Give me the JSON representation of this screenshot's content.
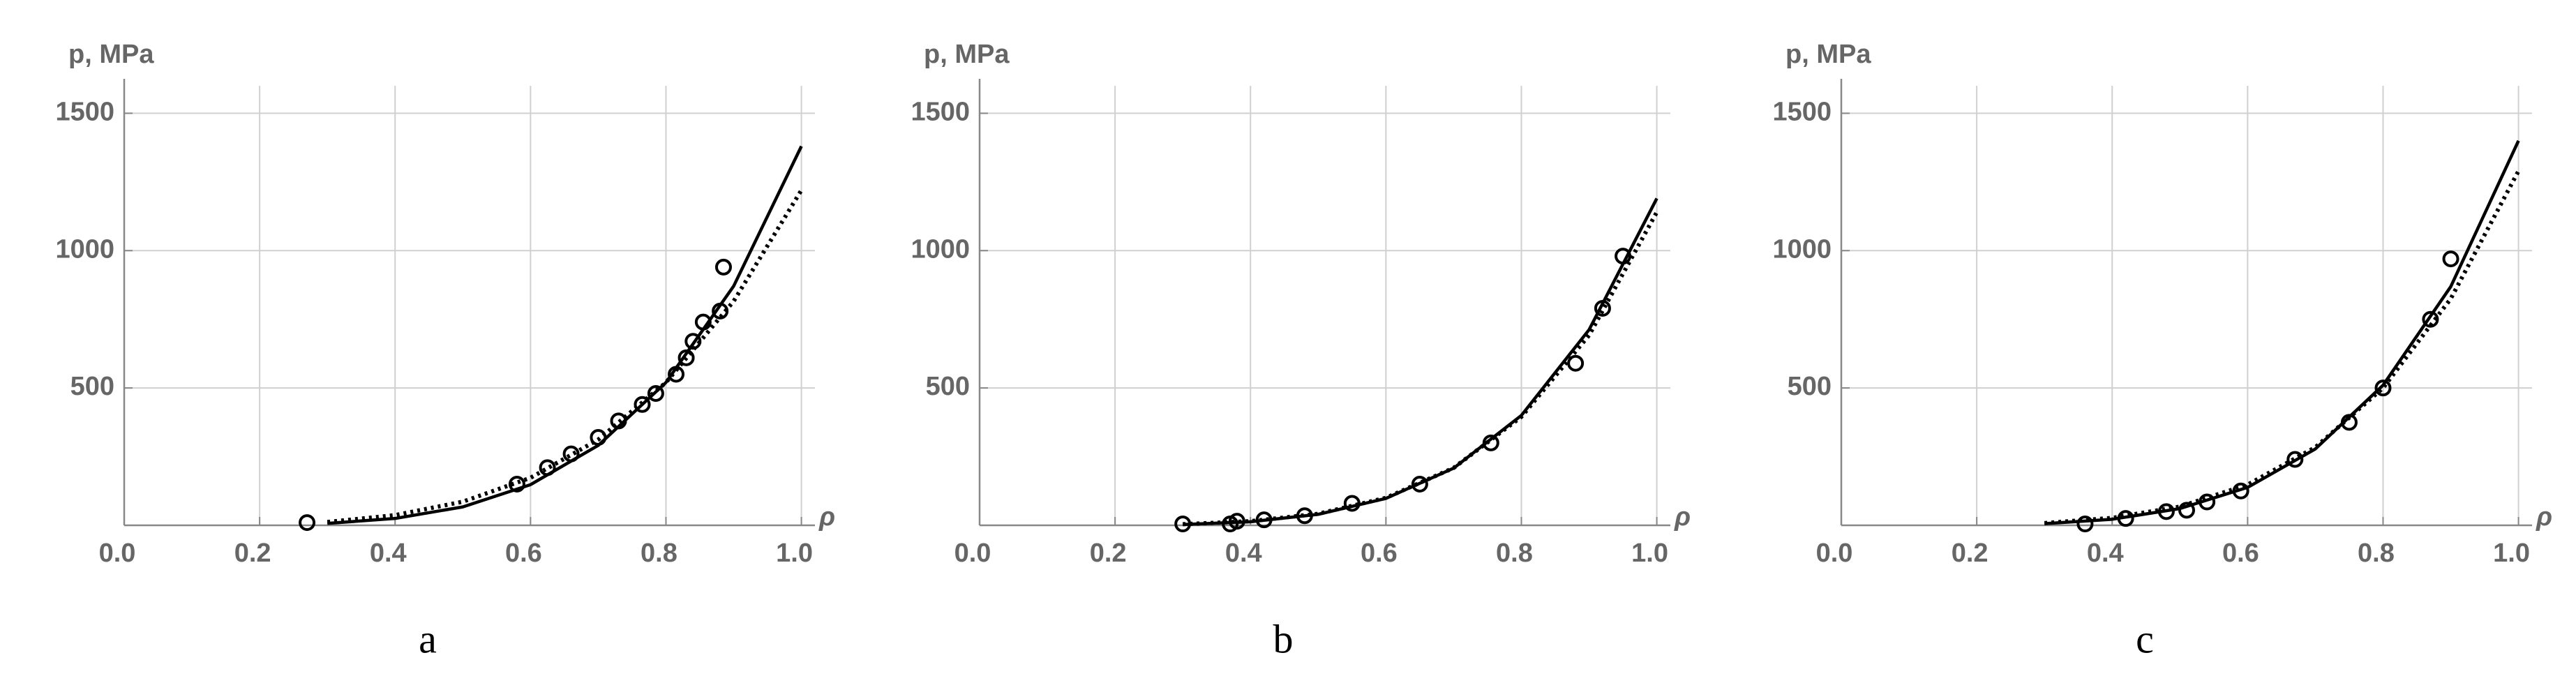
{
  "chart_data": [
    {
      "type": "scatter",
      "ylabel": "p, MPa",
      "xlabel": "ρ",
      "caption": "a",
      "xlim": [
        0,
        1.02
      ],
      "ylim": [
        0,
        1600
      ],
      "xticks": [
        {
          "value": 0,
          "label": "0.0"
        },
        0.2,
        0.4,
        0.6,
        0.8,
        {
          "value": 1,
          "label": "1.0"
        }
      ],
      "yticks": [
        500,
        1000,
        1500
      ],
      "grid": true,
      "series": [
        {
          "style": "markers",
          "color": "#000000",
          "x": [
            0.27,
            0.58,
            0.625,
            0.66,
            0.7,
            0.73,
            0.765,
            0.785,
            0.815,
            0.83,
            0.84,
            0.855,
            0.88,
            0.885
          ],
          "values": [
            10,
            150,
            210,
            260,
            320,
            380,
            440,
            480,
            550,
            610,
            670,
            740,
            780,
            940
          ]
        },
        {
          "style": "solid",
          "color": "#000000",
          "x": [
            0.3,
            0.4,
            0.5,
            0.6,
            0.7,
            0.8,
            0.9,
            1
          ],
          "values": [
            7,
            25,
            67,
            148,
            291,
            520,
            871,
            1380
          ]
        },
        {
          "style": "dotted",
          "color": "#000000",
          "x": [
            0.3,
            0.4,
            0.5,
            0.6,
            0.7,
            0.8,
            0.9,
            1
          ],
          "values": [
            12,
            37,
            86,
            173,
            312,
            520,
            816,
            1220
          ]
        }
      ]
    },
    {
      "type": "scatter",
      "ylabel": "p, MPa",
      "xlabel": "ρ",
      "caption": "b",
      "xlim": [
        0,
        1.02
      ],
      "ylim": [
        0,
        1600
      ],
      "xticks": [
        {
          "value": 0,
          "label": "0.0"
        },
        0.2,
        0.4,
        0.6,
        0.8,
        {
          "value": 1,
          "label": "1.0"
        }
      ],
      "yticks": [
        500,
        1000,
        1500
      ],
      "grid": true,
      "series": [
        {
          "style": "markers",
          "color": "#000000",
          "x": [
            0.3,
            0.37,
            0.38,
            0.42,
            0.48,
            0.55,
            0.65,
            0.755,
            0.88,
            0.92,
            0.95
          ],
          "values": [
            5,
            5,
            15,
            20,
            35,
            80,
            150,
            300,
            590,
            790,
            980
          ]
        },
        {
          "style": "solid",
          "color": "#000000",
          "x": [
            0.3,
            0.4,
            0.5,
            0.6,
            0.7,
            0.8,
            0.9,
            1
          ],
          "values": [
            3,
            13,
            40,
            98,
            208,
            400,
            712,
            1190
          ]
        },
        {
          "style": "dotted",
          "color": "#000000",
          "x": [
            0.3,
            0.4,
            0.5,
            0.6,
            0.7,
            0.8,
            0.9,
            1
          ],
          "values": [
            4,
            15,
            42,
            100,
            209,
            395,
            692,
            1140
          ]
        }
      ]
    },
    {
      "type": "scatter",
      "ylabel": "p, MPa",
      "xlabel": "ρ",
      "caption": "c",
      "xlim": [
        0,
        1.02
      ],
      "ylim": [
        0,
        1600
      ],
      "xticks": [
        {
          "value": 0,
          "label": "0.0"
        },
        0.2,
        0.4,
        0.6,
        0.8,
        {
          "value": 1,
          "label": "1.0"
        }
      ],
      "yticks": [
        500,
        1000,
        1500
      ],
      "grid": true,
      "series": [
        {
          "style": "markers",
          "color": "#000000",
          "x": [
            0.36,
            0.42,
            0.48,
            0.51,
            0.54,
            0.59,
            0.67,
            0.75,
            0.8,
            0.87,
            0.9
          ],
          "values": [
            5,
            25,
            50,
            55,
            85,
            125,
            240,
            375,
            500,
            750,
            970
          ]
        },
        {
          "style": "solid",
          "color": "#000000",
          "x": [
            0.3,
            0.4,
            0.5,
            0.6,
            0.7,
            0.8,
            0.9,
            1
          ],
          "values": [
            6,
            22,
            61,
            138,
            278,
            510,
            869,
            1400
          ]
        },
        {
          "style": "dotted",
          "color": "#000000",
          "x": [
            0.3,
            0.4,
            0.5,
            0.6,
            0.7,
            0.8,
            0.9,
            1
          ],
          "values": [
            8,
            27,
            68,
            148,
            284,
            500,
            825,
            1290
          ]
        }
      ]
    }
  ]
}
